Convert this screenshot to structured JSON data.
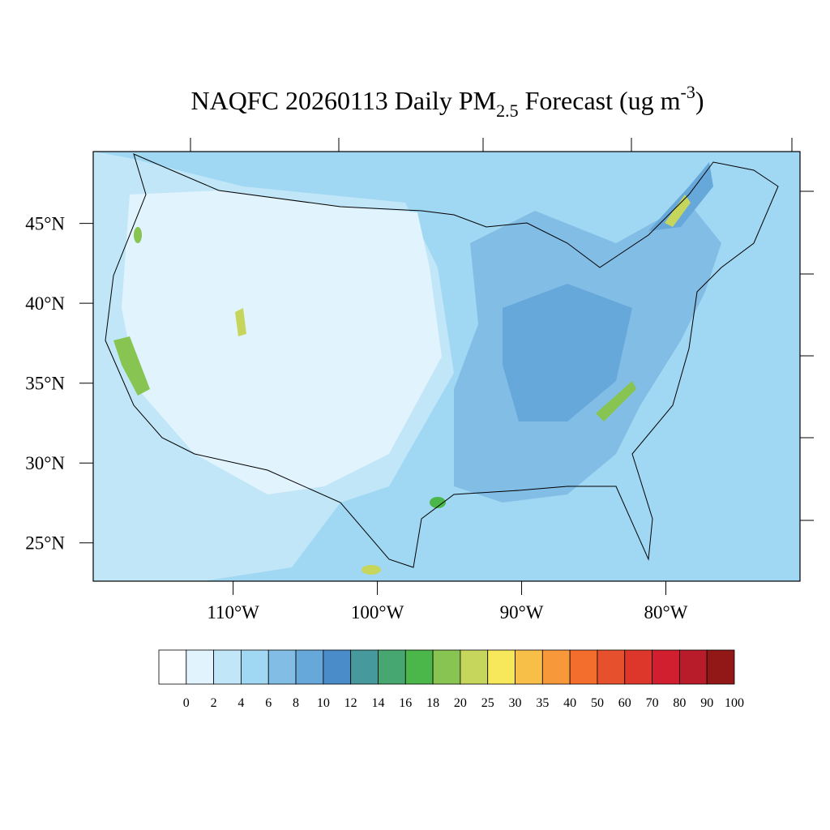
{
  "chart_data": {
    "type": "map",
    "title": {
      "main": "NAQFC 20260113 Daily PM",
      "sub": "2.5",
      "mid": " Forecast (ug m",
      "sup": "-3",
      "end": ")"
    },
    "xlim": [
      -119.7,
      -70.7
    ],
    "ylim": [
      22.6,
      49.5
    ],
    "xticks": [
      {
        "value": -110,
        "label": "110°W"
      },
      {
        "value": -100,
        "label": "100°W"
      },
      {
        "value": -90,
        "label": "90°W"
      },
      {
        "value": -80,
        "label": "80°W"
      }
    ],
    "yticks": [
      {
        "value": 45,
        "label": "45°N"
      },
      {
        "value": 40,
        "label": "40°N"
      },
      {
        "value": 35,
        "label": "35°N"
      },
      {
        "value": 30,
        "label": "30°N"
      },
      {
        "value": 25,
        "label": "25°N"
      }
    ],
    "colorbar": {
      "levels": [
        0,
        2,
        4,
        6,
        8,
        10,
        12,
        14,
        16,
        18,
        20,
        25,
        30,
        35,
        40,
        50,
        60,
        70,
        80,
        90,
        100
      ],
      "colors": [
        "#ffffff",
        "#e1f3fc",
        "#c0e6f8",
        "#a0d8f4",
        "#82bde6",
        "#67a8da",
        "#4a8bc9",
        "#469a9e",
        "#46a870",
        "#4bb74b",
        "#88c452",
        "#c6d65c",
        "#f7e75a",
        "#f8bf48",
        "#f7983a",
        "#f36d2c",
        "#e6502c",
        "#dc372a",
        "#d21f2f",
        "#b81b2a",
        "#921818"
      ]
    }
  }
}
